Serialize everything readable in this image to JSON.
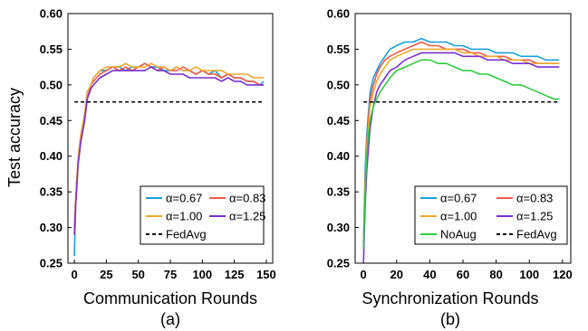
{
  "chart_data": [
    {
      "type": "line",
      "panel_label": "(a)",
      "xlabel": "Communication Rounds",
      "ylabel": "Test accuracy",
      "xlim": [
        -5,
        155
      ],
      "ylim": [
        0.25,
        0.6
      ],
      "xticks": [
        "0",
        "25",
        "50",
        "75",
        "100",
        "125",
        "150"
      ],
      "yticks": [
        "0.25",
        "0.30",
        "0.35",
        "0.40",
        "0.45",
        "0.50",
        "0.55",
        "0.60"
      ],
      "legend_position": "bottom-right",
      "legend_columns": 2,
      "series": [
        {
          "name": "α=0.67",
          "color": "#1a9fe0",
          "style": "solid",
          "x": [
            0,
            1,
            2,
            3,
            5,
            8,
            10,
            13,
            15,
            20,
            25,
            30,
            35,
            40,
            45,
            50,
            55,
            60,
            65,
            70,
            75,
            80,
            85,
            90,
            95,
            100,
            105,
            110,
            115,
            120,
            125,
            130,
            135,
            140,
            145,
            148
          ],
          "y": [
            0.26,
            0.33,
            0.37,
            0.39,
            0.42,
            0.45,
            0.48,
            0.5,
            0.51,
            0.52,
            0.52,
            0.525,
            0.525,
            0.52,
            0.525,
            0.525,
            0.53,
            0.525,
            0.525,
            0.52,
            0.52,
            0.525,
            0.52,
            0.52,
            0.515,
            0.52,
            0.515,
            0.52,
            0.51,
            0.515,
            0.51,
            0.51,
            0.505,
            0.505,
            0.5,
            0.505
          ]
        },
        {
          "name": "α=0.83",
          "color": "#f05a4a",
          "style": "solid",
          "x": [
            0,
            1,
            2,
            3,
            5,
            8,
            10,
            13,
            15,
            20,
            25,
            30,
            35,
            40,
            45,
            50,
            55,
            60,
            65,
            70,
            75,
            80,
            85,
            90,
            95,
            100,
            105,
            110,
            115,
            120,
            125,
            130,
            135,
            140,
            145,
            148
          ],
          "y": [
            0.3,
            0.34,
            0.37,
            0.39,
            0.42,
            0.45,
            0.48,
            0.5,
            0.505,
            0.515,
            0.52,
            0.525,
            0.52,
            0.525,
            0.52,
            0.525,
            0.53,
            0.525,
            0.52,
            0.525,
            0.52,
            0.52,
            0.525,
            0.52,
            0.515,
            0.52,
            0.515,
            0.515,
            0.51,
            0.515,
            0.51,
            0.51,
            0.505,
            0.505,
            0.5,
            0.5
          ]
        },
        {
          "name": "α=1.00",
          "color": "#f0a830",
          "style": "solid",
          "x": [
            0,
            1,
            2,
            3,
            5,
            8,
            10,
            13,
            15,
            20,
            25,
            30,
            35,
            40,
            45,
            50,
            55,
            60,
            65,
            70,
            75,
            80,
            85,
            90,
            95,
            100,
            105,
            110,
            115,
            120,
            125,
            130,
            135,
            140,
            145,
            148
          ],
          "y": [
            0.29,
            0.33,
            0.37,
            0.4,
            0.43,
            0.46,
            0.49,
            0.5,
            0.51,
            0.52,
            0.525,
            0.525,
            0.525,
            0.53,
            0.525,
            0.525,
            0.525,
            0.53,
            0.525,
            0.525,
            0.52,
            0.525,
            0.52,
            0.52,
            0.525,
            0.52,
            0.52,
            0.52,
            0.52,
            0.515,
            0.515,
            0.515,
            0.515,
            0.51,
            0.51,
            0.51
          ]
        },
        {
          "name": "α=1.25",
          "color": "#7a2fd0",
          "style": "solid",
          "x": [
            0,
            1,
            2,
            3,
            5,
            8,
            10,
            13,
            15,
            20,
            25,
            30,
            35,
            40,
            45,
            50,
            55,
            60,
            65,
            70,
            75,
            80,
            85,
            90,
            95,
            100,
            105,
            110,
            115,
            120,
            125,
            130,
            135,
            140,
            145,
            148
          ],
          "y": [
            0.29,
            0.33,
            0.36,
            0.39,
            0.42,
            0.45,
            0.48,
            0.495,
            0.5,
            0.51,
            0.515,
            0.52,
            0.52,
            0.52,
            0.52,
            0.52,
            0.52,
            0.525,
            0.52,
            0.52,
            0.515,
            0.515,
            0.515,
            0.51,
            0.51,
            0.51,
            0.51,
            0.51,
            0.505,
            0.51,
            0.505,
            0.505,
            0.5,
            0.5,
            0.5,
            0.5
          ]
        },
        {
          "name": "FedAvg",
          "color": "#000000",
          "style": "dashed",
          "x": [
            0,
            148
          ],
          "y": [
            0.476,
            0.476
          ]
        }
      ]
    },
    {
      "type": "line",
      "panel_label": "(b)",
      "xlabel": "Synchronization Rounds",
      "ylabel": "",
      "xlim": [
        -5,
        125
      ],
      "ylim": [
        0.25,
        0.6
      ],
      "xticks": [
        "0",
        "20",
        "40",
        "60",
        "80",
        "100",
        "120"
      ],
      "yticks": [
        "0.25",
        "0.30",
        "0.35",
        "0.40",
        "0.45",
        "0.50",
        "0.55",
        "0.60"
      ],
      "legend_position": "bottom-right",
      "legend_columns": 2,
      "series": [
        {
          "name": "α=0.67",
          "color": "#1a9fe0",
          "style": "solid",
          "x": [
            0,
            1,
            2,
            3,
            4,
            6,
            8,
            10,
            13,
            16,
            20,
            25,
            30,
            35,
            40,
            45,
            50,
            55,
            60,
            65,
            70,
            75,
            80,
            85,
            90,
            95,
            100,
            105,
            110,
            115,
            118
          ],
          "y": [
            0.28,
            0.38,
            0.43,
            0.46,
            0.49,
            0.51,
            0.52,
            0.53,
            0.54,
            0.55,
            0.555,
            0.56,
            0.56,
            0.565,
            0.56,
            0.56,
            0.56,
            0.555,
            0.555,
            0.55,
            0.55,
            0.55,
            0.545,
            0.545,
            0.545,
            0.54,
            0.54,
            0.54,
            0.535,
            0.535,
            0.535
          ]
        },
        {
          "name": "α=0.83",
          "color": "#f05a4a",
          "style": "solid",
          "x": [
            0,
            1,
            2,
            3,
            4,
            6,
            8,
            10,
            13,
            16,
            20,
            25,
            30,
            35,
            40,
            45,
            50,
            55,
            60,
            65,
            70,
            75,
            80,
            85,
            90,
            95,
            100,
            105,
            110,
            115,
            118
          ],
          "y": [
            0.27,
            0.36,
            0.42,
            0.45,
            0.48,
            0.5,
            0.515,
            0.525,
            0.535,
            0.54,
            0.545,
            0.55,
            0.555,
            0.56,
            0.555,
            0.555,
            0.55,
            0.55,
            0.55,
            0.545,
            0.545,
            0.54,
            0.54,
            0.54,
            0.535,
            0.535,
            0.535,
            0.53,
            0.53,
            0.53,
            0.53
          ]
        },
        {
          "name": "α=1.00",
          "color": "#f0a830",
          "style": "solid",
          "x": [
            0,
            1,
            2,
            3,
            4,
            6,
            8,
            10,
            13,
            16,
            20,
            25,
            30,
            35,
            40,
            45,
            50,
            55,
            60,
            65,
            70,
            75,
            80,
            85,
            90,
            95,
            100,
            105,
            110,
            115,
            118
          ],
          "y": [
            0.27,
            0.36,
            0.41,
            0.44,
            0.47,
            0.49,
            0.505,
            0.515,
            0.525,
            0.535,
            0.54,
            0.545,
            0.55,
            0.55,
            0.55,
            0.55,
            0.55,
            0.55,
            0.545,
            0.545,
            0.54,
            0.54,
            0.54,
            0.535,
            0.535,
            0.535,
            0.53,
            0.53,
            0.53,
            0.53,
            0.53
          ]
        },
        {
          "name": "α=1.25",
          "color": "#7a2fd0",
          "style": "solid",
          "x": [
            0,
            1,
            2,
            3,
            4,
            6,
            8,
            10,
            13,
            16,
            20,
            25,
            30,
            35,
            40,
            45,
            50,
            55,
            60,
            65,
            70,
            75,
            80,
            85,
            90,
            95,
            100,
            105,
            110,
            115,
            118
          ],
          "y": [
            0.25,
            0.33,
            0.38,
            0.41,
            0.44,
            0.47,
            0.49,
            0.5,
            0.51,
            0.52,
            0.525,
            0.535,
            0.54,
            0.545,
            0.545,
            0.545,
            0.545,
            0.545,
            0.54,
            0.54,
            0.54,
            0.535,
            0.535,
            0.535,
            0.53,
            0.53,
            0.53,
            0.525,
            0.525,
            0.525,
            0.525
          ]
        },
        {
          "name": "NoAug",
          "color": "#2ecc40",
          "style": "solid",
          "x": [
            0,
            1,
            2,
            3,
            4,
            6,
            8,
            10,
            13,
            16,
            20,
            25,
            30,
            35,
            40,
            45,
            50,
            55,
            60,
            65,
            70,
            75,
            80,
            85,
            90,
            95,
            100,
            105,
            110,
            115,
            118
          ],
          "y": [
            0.27,
            0.35,
            0.4,
            0.43,
            0.45,
            0.47,
            0.48,
            0.49,
            0.5,
            0.51,
            0.52,
            0.525,
            0.53,
            0.535,
            0.535,
            0.53,
            0.53,
            0.525,
            0.52,
            0.52,
            0.515,
            0.515,
            0.51,
            0.505,
            0.5,
            0.5,
            0.495,
            0.49,
            0.485,
            0.48,
            0.48
          ]
        },
        {
          "name": "FedAvg",
          "color": "#000000",
          "style": "dashed",
          "x": [
            0,
            118
          ],
          "y": [
            0.476,
            0.476
          ]
        }
      ]
    }
  ]
}
